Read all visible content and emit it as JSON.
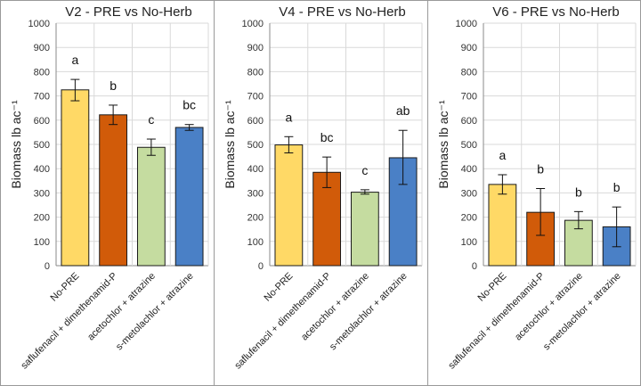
{
  "chart_data": [
    {
      "type": "bar",
      "title": "V2 - PRE vs No-Herb",
      "ylabel": "Biomass lb ac⁻¹",
      "xlabel": "",
      "ylim": [
        0,
        1000
      ],
      "yticks": [
        0,
        100,
        200,
        300,
        400,
        500,
        600,
        700,
        800,
        900,
        1000
      ],
      "grid": true,
      "categories": [
        "No-PRE",
        "saflufenacil + dimethenamid-P",
        "acetochlor + atrazine",
        "s-metolachlor + atrazine"
      ],
      "values": [
        725,
        622,
        488,
        570
      ],
      "error_low": [
        680,
        582,
        455,
        558
      ],
      "error_high": [
        768,
        662,
        522,
        582
      ],
      "letters": [
        "a",
        "b",
        "c",
        "bc"
      ],
      "colors": [
        "#ffd966",
        "#d15b09",
        "#c5dca0",
        "#4a80c6"
      ]
    },
    {
      "type": "bar",
      "title": "V4 - PRE vs No-Herb",
      "ylabel": "Biomass lb ac⁻¹",
      "xlabel": "",
      "ylim": [
        0,
        1000
      ],
      "yticks": [
        0,
        100,
        200,
        300,
        400,
        500,
        600,
        700,
        800,
        900,
        1000
      ],
      "grid": true,
      "categories": [
        "No-PRE",
        "saflufenacil + dimethenamid-P",
        "acetochlor + atrazine",
        "s-metolachlor + atrazine"
      ],
      "values": [
        498,
        385,
        303,
        445
      ],
      "error_low": [
        465,
        322,
        295,
        335
      ],
      "error_high": [
        532,
        448,
        313,
        558
      ],
      "letters": [
        "a",
        "bc",
        "c",
        "ab"
      ],
      "colors": [
        "#ffd966",
        "#d15b09",
        "#c5dca0",
        "#4a80c6"
      ]
    },
    {
      "type": "bar",
      "title": "V6 - PRE vs No-Herb",
      "ylabel": "Biomass lb ac⁻¹",
      "xlabel": "",
      "ylim": [
        0,
        1000
      ],
      "yticks": [
        0,
        100,
        200,
        300,
        400,
        500,
        600,
        700,
        800,
        900,
        1000
      ],
      "grid": true,
      "categories": [
        "No-PRE",
        "saflufenacil + dimethenamid-P",
        "acetochlor + atrazine",
        "s-metolachlor + atrazine"
      ],
      "values": [
        335,
        220,
        187,
        160
      ],
      "error_low": [
        295,
        125,
        152,
        78
      ],
      "error_high": [
        375,
        318,
        223,
        242
      ],
      "letters": [
        "a",
        "b",
        "b",
        "b"
      ],
      "colors": [
        "#ffd966",
        "#d15b09",
        "#c5dca0",
        "#4a80c6"
      ]
    }
  ]
}
